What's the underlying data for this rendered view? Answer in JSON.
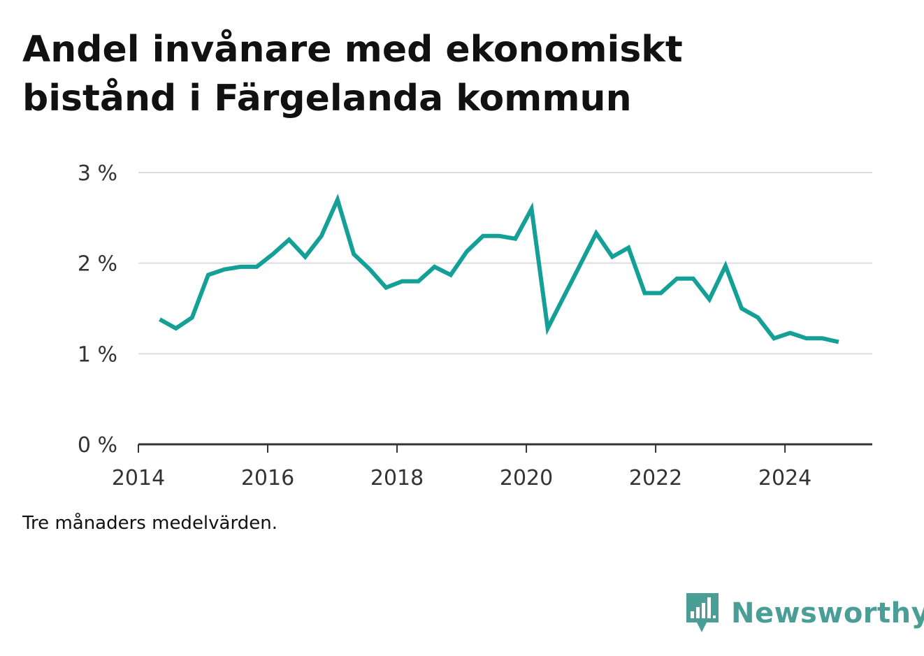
{
  "title": "Andel invånare med ekonomiskt bistånd i Färgelanda kommun",
  "note": "Tre månaders medelvärden.",
  "brand": {
    "name": "Newsworthy",
    "icon": "bar-chart-speech-bubble-icon",
    "color": "#4a9e96"
  },
  "colors": {
    "line": "#14a096",
    "grid": "#dddddd",
    "axis": "#333333"
  },
  "chart_data": {
    "type": "line",
    "title": "Andel invånare med ekonomiskt bistånd i Färgelanda kommun",
    "xlabel": "",
    "ylabel": "",
    "xlim": [
      2014,
      2025.35
    ],
    "ylim": [
      0,
      3
    ],
    "grid": true,
    "y_ticks": [
      0,
      1,
      2,
      3
    ],
    "y_tick_labels": [
      "0 %",
      "1 %",
      "2 %",
      "3 %"
    ],
    "x_ticks": [
      2014,
      2016,
      2018,
      2020,
      2022,
      2024
    ],
    "x_tick_labels": [
      "2014",
      "2016",
      "2018",
      "2020",
      "2022",
      "2024"
    ],
    "series": [
      {
        "x": [
          2014.33,
          2014.58,
          2014.83,
          2015.08,
          2015.33,
          2015.58,
          2015.83,
          2016.08,
          2016.33,
          2016.58,
          2016.83,
          2017.08,
          2017.33,
          2017.58,
          2017.83,
          2018.08,
          2018.33,
          2018.58,
          2018.83,
          2019.08,
          2019.33,
          2019.58,
          2019.83,
          2020.08,
          2020.33,
          2020.58,
          2020.83,
          2021.08,
          2021.33,
          2021.58,
          2021.83,
          2022.08,
          2022.33,
          2022.58,
          2022.83,
          2023.08,
          2023.33,
          2023.58,
          2023.83,
          2024.08,
          2024.33,
          2024.58,
          2024.83
        ],
        "values": [
          1.38,
          1.28,
          1.4,
          1.87,
          1.93,
          1.96,
          1.96,
          2.1,
          2.26,
          2.07,
          2.3,
          2.7,
          2.1,
          1.93,
          1.73,
          1.8,
          1.8,
          1.96,
          1.87,
          2.13,
          2.3,
          2.3,
          2.27,
          2.6,
          1.28,
          1.63,
          1.98,
          2.33,
          2.07,
          2.17,
          1.67,
          1.67,
          1.83,
          1.83,
          1.6,
          1.97,
          1.5,
          1.4,
          1.17,
          1.23,
          1.17,
          1.17,
          1.13
        ]
      }
    ]
  }
}
